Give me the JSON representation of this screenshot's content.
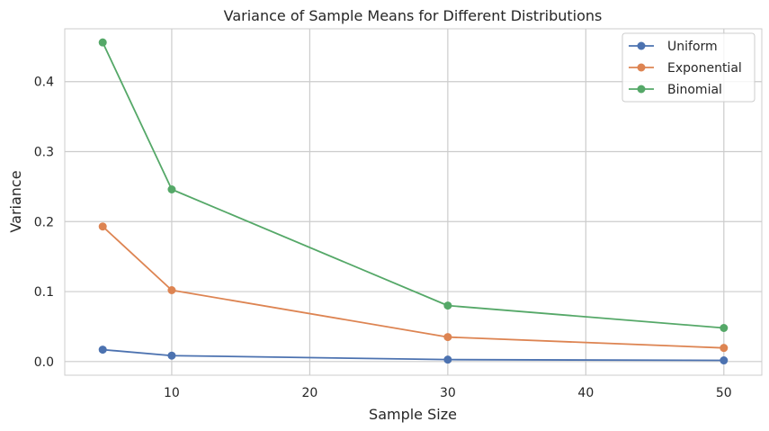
{
  "chart_data": {
    "type": "line",
    "title": "Variance of Sample Means for Different Distributions",
    "xlabel": "Sample Size",
    "ylabel": "Variance",
    "x": [
      5,
      10,
      30,
      50
    ],
    "xlim": [
      2.25,
      52.75
    ],
    "ylim": [
      -0.0195,
      0.4755
    ],
    "xticks": [
      10,
      20,
      30,
      40,
      50
    ],
    "yticks": [
      0.0,
      0.1,
      0.2,
      0.3,
      0.4
    ],
    "xtick_labels": [
      "10",
      "20",
      "30",
      "40",
      "50"
    ],
    "ytick_labels": [
      "0.0",
      "0.1",
      "0.2",
      "0.3",
      "0.4"
    ],
    "grid": true,
    "legend_position": "top-right",
    "series": [
      {
        "name": "Uniform",
        "color": "#4c72b0",
        "values": [
          0.017,
          0.0085,
          0.0028,
          0.0017
        ]
      },
      {
        "name": "Exponential",
        "color": "#dd8452",
        "values": [
          0.193,
          0.102,
          0.035,
          0.0195
        ]
      },
      {
        "name": "Binomial",
        "color": "#55a868",
        "values": [
          0.456,
          0.246,
          0.08,
          0.048
        ]
      }
    ]
  }
}
